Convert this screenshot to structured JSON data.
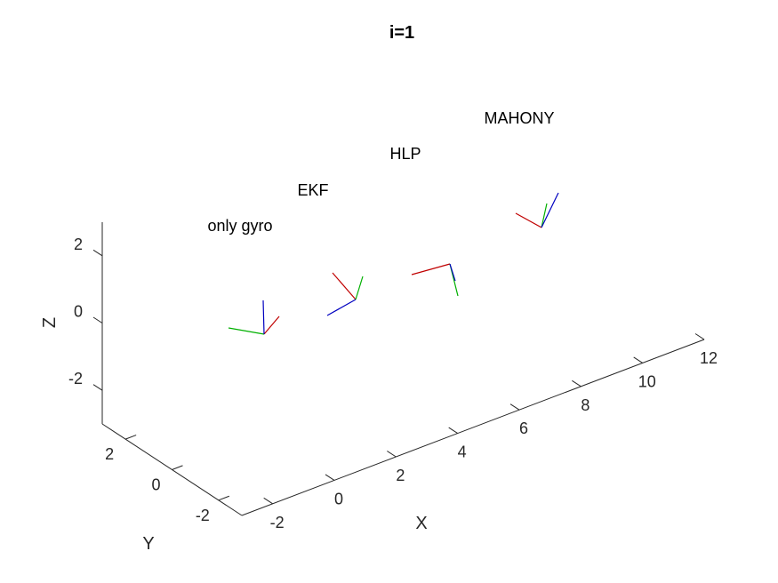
{
  "chart_data": {
    "type": "3d-frames",
    "title": "i=1",
    "xlabel": "X",
    "ylabel": "Y",
    "zlabel": "Z",
    "xlim": [
      -3,
      12
    ],
    "ylim": [
      -3,
      3
    ],
    "zlim": [
      -3,
      3
    ],
    "xticks": [
      -2,
      0,
      2,
      4,
      6,
      8,
      10,
      12
    ],
    "yticks": [
      -2,
      0,
      2
    ],
    "zticks": [
      -2,
      0,
      2
    ],
    "grid": false,
    "frames": [
      {
        "name": "only gyro",
        "origin": [
          0,
          0,
          0
        ]
      },
      {
        "name": "EKF",
        "origin": [
          3,
          0,
          0
        ]
      },
      {
        "name": "HLP",
        "origin": [
          6,
          0,
          0
        ]
      },
      {
        "name": "MAHONY",
        "origin": [
          9,
          0,
          0
        ]
      }
    ],
    "axis_colors": {
      "x": "#c00000",
      "y": "#00b000",
      "z": "#0000c0"
    },
    "axis_line_color": "#262626"
  }
}
